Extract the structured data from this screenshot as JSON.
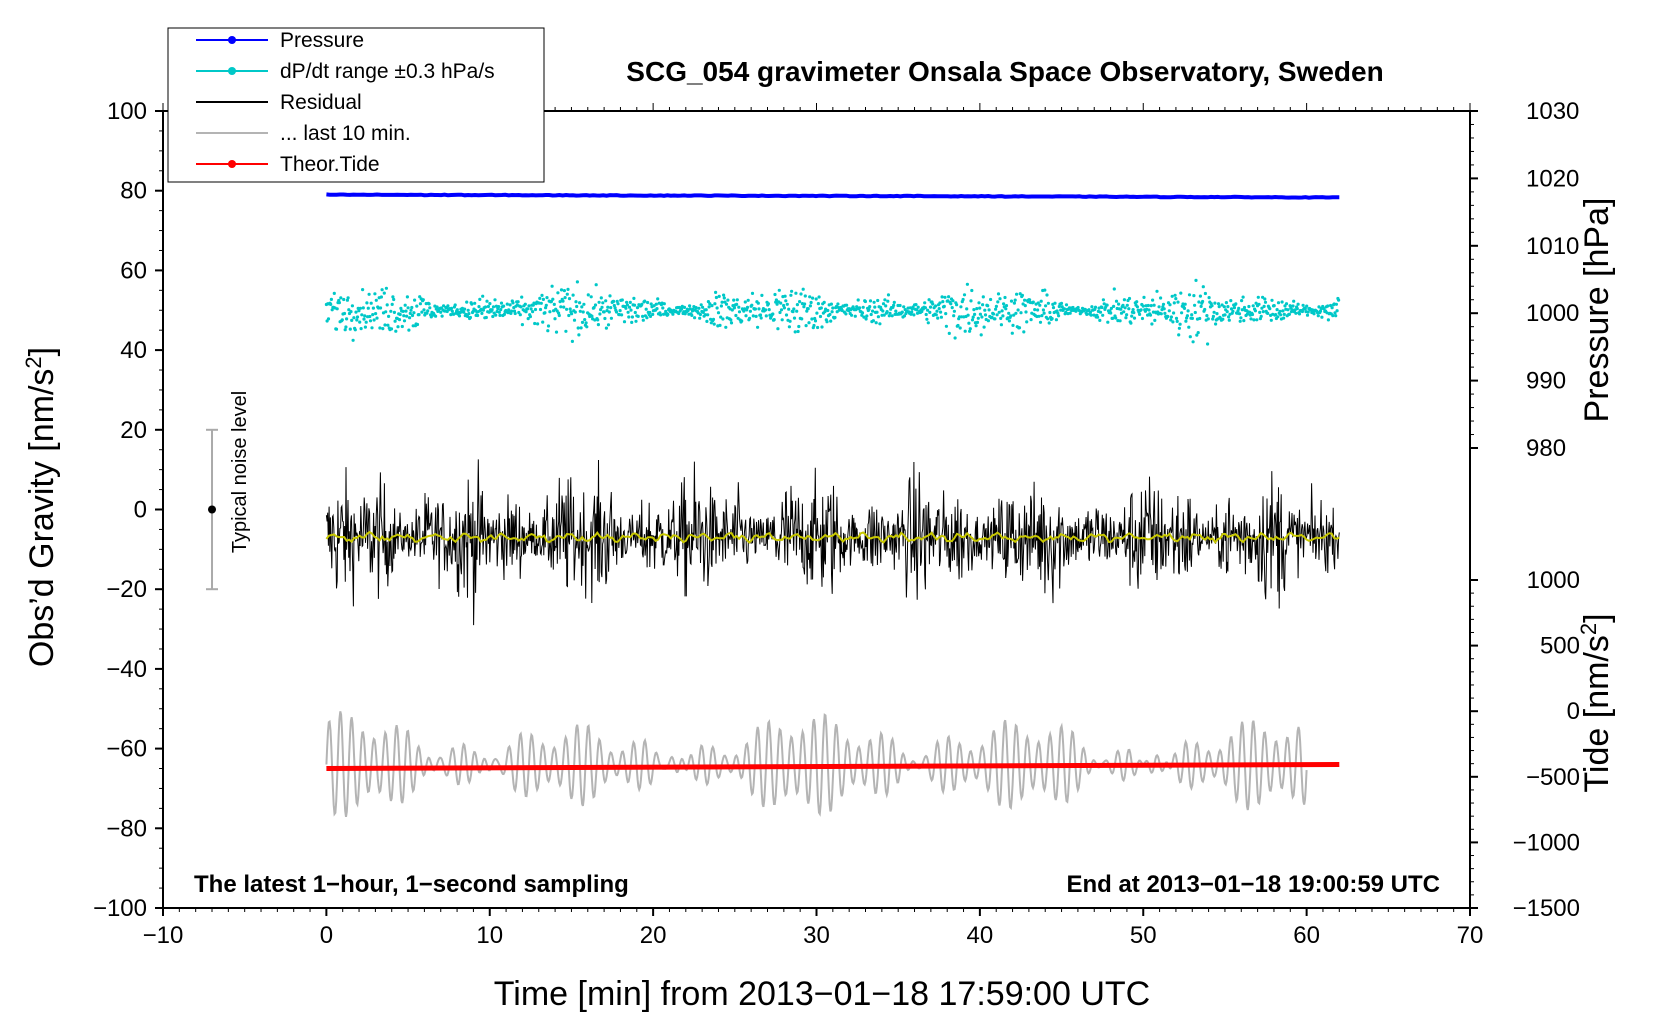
{
  "chart_data": {
    "type": "line",
    "title": "SCG_054 gravimeter Onsala Space Observatory, Sweden",
    "xlabel": "Time [min] from 2013−01−18 17:59:00 UTC",
    "ylabel_left_main": "Obs’d Gravity [nm/s",
    "ylabel_left_sup": "2",
    "ylabel_left_end": "]",
    "ylabel_right_top": "Pressure [hPa]",
    "ylabel_right_bottom_main": "Tide [nm/s",
    "ylabel_right_bottom_sup": "2",
    "ylabel_right_bottom_end": "]",
    "xlim": [
      -10,
      70
    ],
    "ylim_left": [
      -100,
      100
    ],
    "x_ticks": [
      "−10",
      "0",
      "10",
      "20",
      "30",
      "40",
      "50",
      "60",
      "70"
    ],
    "y_ticks_left": [
      "−100",
      "−80",
      "−60",
      "−40",
      "−20",
      "0",
      "20",
      "40",
      "60",
      "80",
      "100"
    ],
    "y_ticks_right_pressure": [
      "980",
      "990",
      "1000",
      "1010",
      "1020",
      "1030"
    ],
    "y_ticks_right_tide": [
      "−1500",
      "−1000",
      "−500",
      "0",
      "500",
      "1000"
    ],
    "note_left": "The latest 1−hour, 1−second sampling",
    "note_right": "End at 2013−01−18 19:00:59 UTC",
    "noise_label": "Typical noise level",
    "noise_bar": {
      "x": -7,
      "center": 0,
      "low": -20,
      "high": 20
    },
    "legend": [
      {
        "label": "Pressure",
        "color": "#0000ff",
        "style": "line-dot"
      },
      {
        "label": "dP/dt range ±0.3 hPa/s",
        "color": "#00c8c8",
        "style": "line-dot"
      },
      {
        "label": "Residual",
        "color": "#000000",
        "style": "line"
      },
      {
        "label": "... last 10 min.",
        "color": "#b4b4b4",
        "style": "line"
      },
      {
        "label": "Theor.Tide",
        "color": "#ff0000",
        "style": "line-dot"
      }
    ],
    "series": [
      {
        "name": "Pressure",
        "color": "#0000ff",
        "x": [
          0,
          20,
          40,
          62
        ],
        "y": [
          79,
          78.8,
          78.6,
          78.3
        ]
      },
      {
        "name": "dP/dt",
        "color": "#00c8c8",
        "center": 50,
        "spread": 3.5,
        "x_range": [
          0,
          62
        ]
      },
      {
        "name": "Residual",
        "color": "#000000",
        "center": -7,
        "amplitude": 10,
        "x_range": [
          0,
          62
        ]
      },
      {
        "name": "Residual smoothed",
        "color": "#c8c800",
        "center": -7,
        "x_range": [
          0,
          62
        ]
      },
      {
        "name": "... last 10 min.",
        "color": "#b4b4b4",
        "center": -64,
        "amplitude": 10,
        "x_range": [
          0,
          60
        ]
      },
      {
        "name": "Theor.Tide",
        "color": "#ff0000",
        "x": [
          0,
          62
        ],
        "y": [
          -65,
          -64
        ]
      }
    ]
  }
}
